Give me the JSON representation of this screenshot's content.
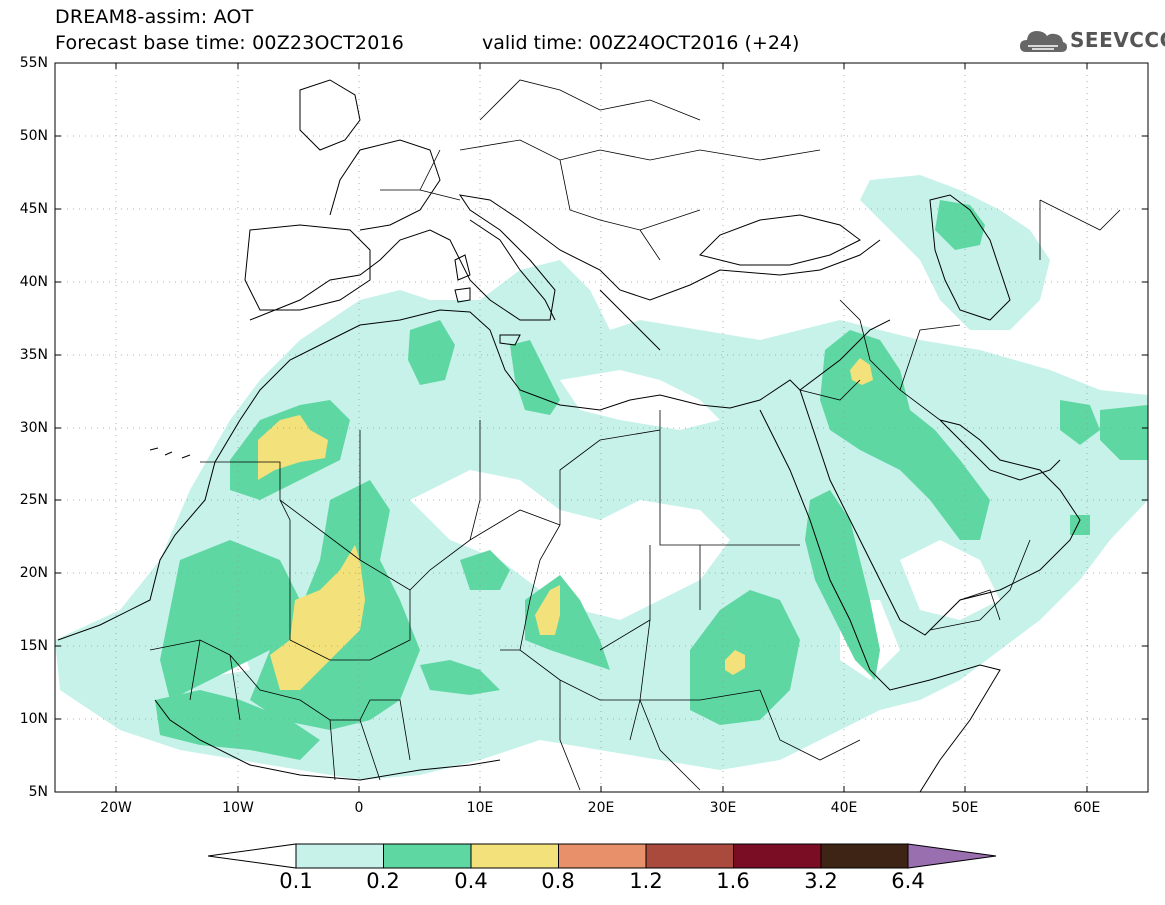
{
  "header": {
    "line1": "DREAM8-assim: AOT",
    "line2": "Forecast base time: 00Z23OCT2016",
    "valid": "valid time: 00Z24OCT2016 (+24)"
  },
  "logo": {
    "text": "SEEVCCC",
    "icon": "cloud-icon"
  },
  "map": {
    "lat_labels": [
      "55N",
      "50N",
      "45N",
      "40N",
      "35N",
      "30N",
      "25N",
      "20N",
      "15N",
      "10N",
      "5N"
    ],
    "lon_labels": [
      "20W",
      "10W",
      "0",
      "10E",
      "20E",
      "30E",
      "40E",
      "50E",
      "60E"
    ],
    "extent": {
      "lon_min": -25,
      "lon_max": 65,
      "lat_min": 5,
      "lat_max": 55
    },
    "colors": {
      "c01": "#c6f2ea",
      "c02": "#5fd7a3",
      "c04": "#f3e27c",
      "land": "#ffffff",
      "border": "#000000",
      "grid": "#999999"
    }
  },
  "colorbar": {
    "labels": [
      "0.1",
      "0.2",
      "0.4",
      "0.8",
      "1.2",
      "1.6",
      "3.2",
      "6.4"
    ],
    "colors": [
      "#c6f2ea",
      "#5fd7a3",
      "#f3e27c",
      "#e8906a",
      "#a94a3d",
      "#7a0d24",
      "#3e2415"
    ],
    "over_color": "#9a6fb0",
    "under_color": "#ffffff"
  }
}
